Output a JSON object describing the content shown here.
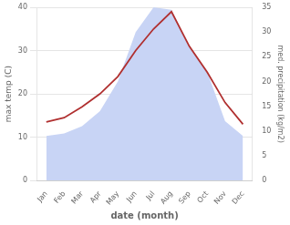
{
  "chart_data": {
    "type": "line",
    "xlabel": "date (month)",
    "ylabel": "max temp (C)",
    "y2label": "med. precipitation (kg/m2)",
    "categories": [
      "Jan",
      "Feb",
      "Mar",
      "Apr",
      "May",
      "Jun",
      "Jul",
      "Aug",
      "Sep",
      "Oct",
      "Nov",
      "Dec"
    ],
    "series": [
      {
        "type": "area",
        "color": "#c8d4f5",
        "axis": "y2",
        "values": [
          9.0,
          9.5,
          11.0,
          14.0,
          20.0,
          30.0,
          35.0,
          34.5,
          27.0,
          22.0,
          12.0,
          9.0
        ]
      },
      {
        "type": "line",
        "color": "#b03030",
        "values": [
          13.5,
          14.5,
          17.0,
          20.0,
          24.0,
          30.0,
          35.0,
          39.0,
          31.0,
          25.0,
          18.0,
          13.0
        ]
      }
    ],
    "ylim": [
      0,
      40
    ],
    "yticks": [
      0,
      10,
      20,
      30,
      40
    ],
    "y2lim": [
      0,
      35
    ],
    "y2ticks": [
      0,
      5,
      10,
      15,
      20,
      25,
      30,
      35
    ],
    "grid": true
  }
}
